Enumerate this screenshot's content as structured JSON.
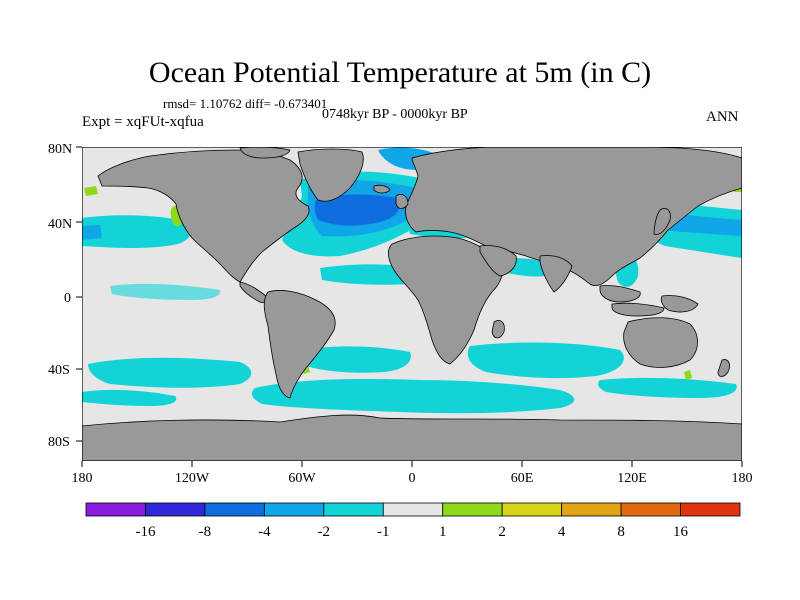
{
  "title": "Ocean Potential Temperature at 5m (in C)",
  "stats_line": "rmsd= 1.10762 diff= -0.673401",
  "period": "0748kyr BP - 0000kyr BP",
  "experiment": "Expt = xqFUt-xqfua",
  "season": "ANN",
  "axes": {
    "x_ticks": [
      "180",
      "120W",
      "60W",
      "0",
      "60E",
      "120E",
      "180"
    ],
    "y_ticks": [
      "80N",
      "40N",
      "0",
      "40S",
      "80S"
    ]
  },
  "colorbar": {
    "labels": [
      "-16",
      "-8",
      "-4",
      "-2",
      "-1",
      "1",
      "2",
      "4",
      "8",
      "16"
    ],
    "colors": [
      "#8a1ee0",
      "#3028d8",
      "#0e6ee0",
      "#10a6e8",
      "#12d4d8",
      "#e6e6e6",
      "#8fd81c",
      "#d8d41a",
      "#e0a414",
      "#e06a10",
      "#e03410"
    ]
  },
  "colors": {
    "land": "#999999",
    "no_change": "#e6e6e6",
    "cool_light": "#12d4d8",
    "cool_mid": "#10a6e8",
    "cool_strong": "#0e6ee0",
    "warm_light": "#8fd81c"
  }
}
